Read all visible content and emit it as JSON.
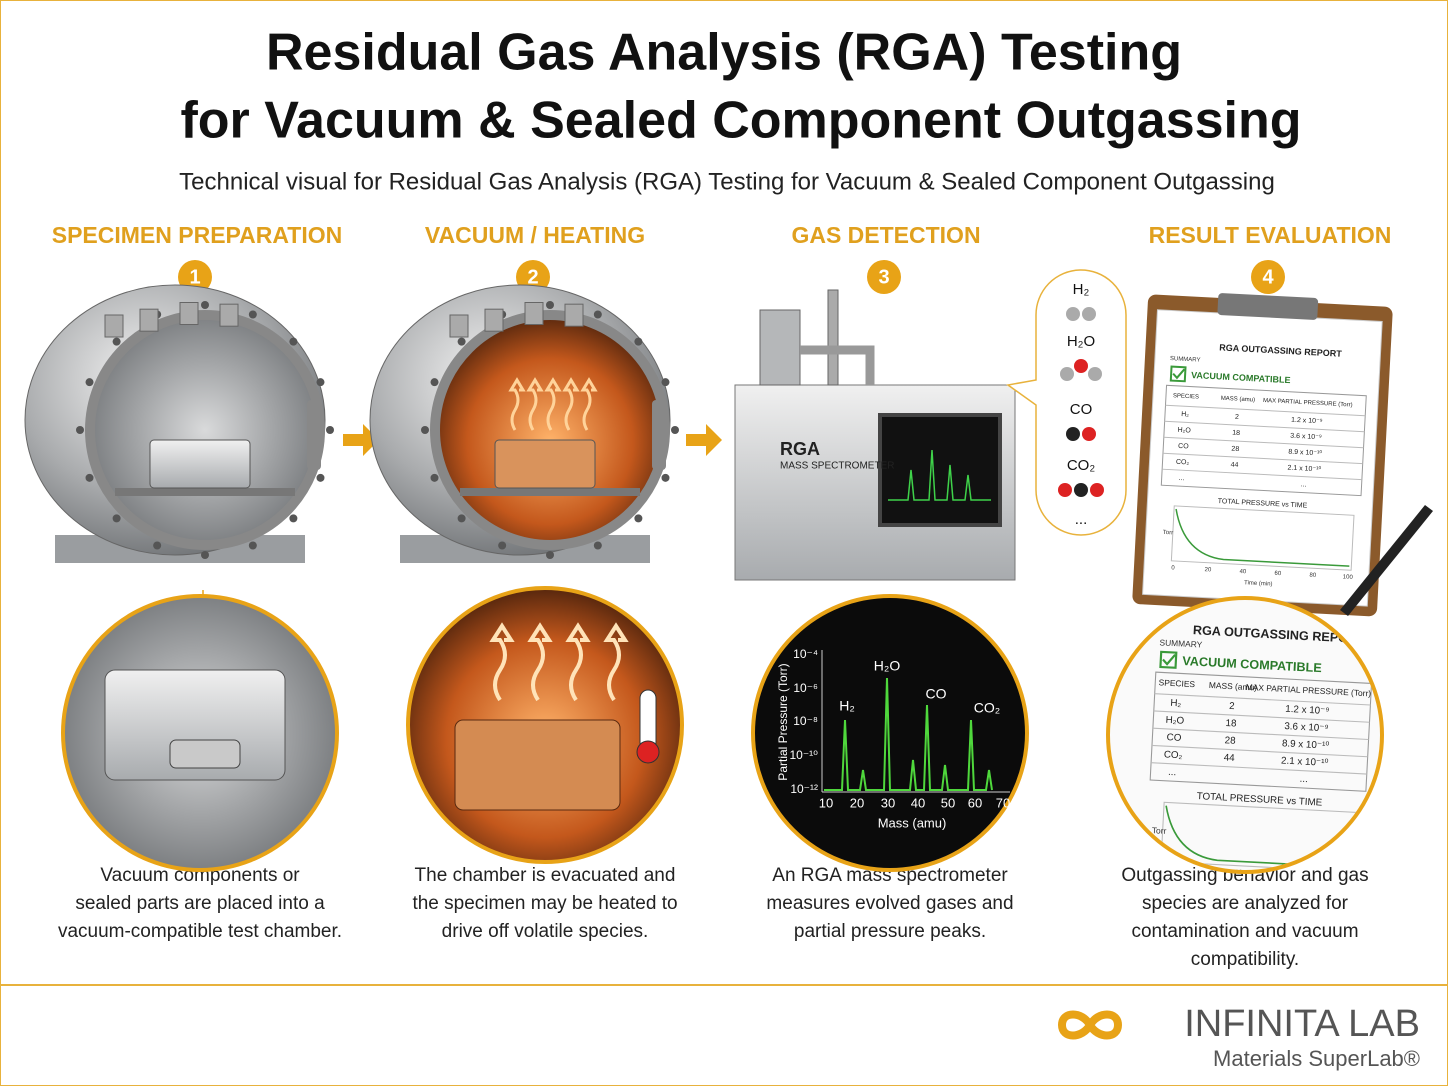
{
  "header": {
    "title_lines": [
      "Residual Gas Analysis (RGA) Testing",
      "for Vacuum & Sealed Component Outgassing"
    ],
    "subtitle": "Technical visual for Residual Gas Analysis (RGA) Testing for Vacuum & Sealed Component Outgassing"
  },
  "steps": [
    {
      "title": "SPECIMEN PREPARATION",
      "number": "1",
      "description": [
        "Vacuum components or",
        "sealed parts are placed into a",
        "vacuum-compatible test chamber."
      ]
    },
    {
      "title": "VACUUM / HEATING",
      "number": "2",
      "description": [
        "The chamber is evacuated and",
        "the specimen may be heated to",
        "drive off volatile species."
      ]
    },
    {
      "title": "GAS DETECTION",
      "number": "3",
      "description": [
        "An RGA mass spectrometer",
        "measures evolved gases and",
        "partial pressure peaks."
      ]
    },
    {
      "title": "RESULT EVALUATION",
      "number": "4",
      "description": [
        "Outgassing behavior and gas",
        "species are analyzed for",
        "contamination and vacuum",
        "compatibility."
      ]
    }
  ],
  "instrument": {
    "name": "RGA",
    "label": "MASS SPECTROMETER"
  },
  "molecules": [
    "H₂",
    "H₂O",
    "CO",
    "CO₂",
    "..."
  ],
  "spectrum": {
    "y_label": "Partial Pressure (Torr)",
    "x_label": "Mass (amu)",
    "yticks": [
      "10⁻⁴",
      "10⁻⁶",
      "10⁻⁸",
      "10⁻¹⁰",
      "10⁻¹²"
    ],
    "xticks": [
      "10",
      "20",
      "30",
      "40",
      "50",
      "60",
      "70"
    ],
    "peaks": [
      "H₂",
      "H₂O",
      "CO",
      "CO₂"
    ]
  },
  "report": {
    "title": "RGA OUTGASSING REPORT",
    "summary": "SUMMARY",
    "status": "VACUUM COMPATIBLE",
    "columns": [
      "SPECIES",
      "MASS (amu)",
      "MAX PARTIAL PRESSURE (Torr)"
    ],
    "rows": [
      [
        "H₂",
        "2",
        "1.2 x 10⁻⁹"
      ],
      [
        "H₂O",
        "18",
        "3.6 x 10⁻⁹"
      ],
      [
        "CO",
        "28",
        "8.9 x 10⁻¹⁰"
      ],
      [
        "CO₂",
        "44",
        "2.1 x 10⁻¹⁰"
      ],
      [
        "...",
        "",
        "..."
      ]
    ],
    "plot_title": "TOTAL PRESSURE vs TIME",
    "plot_y_label": "Torr",
    "plot_x_label": "Time (min)",
    "plot_xticks": [
      "0",
      "20",
      "40",
      "60",
      "80",
      "100"
    ]
  },
  "footer": {
    "brand": "INFINITA LAB",
    "tagline": "Materials SuperLab®"
  }
}
